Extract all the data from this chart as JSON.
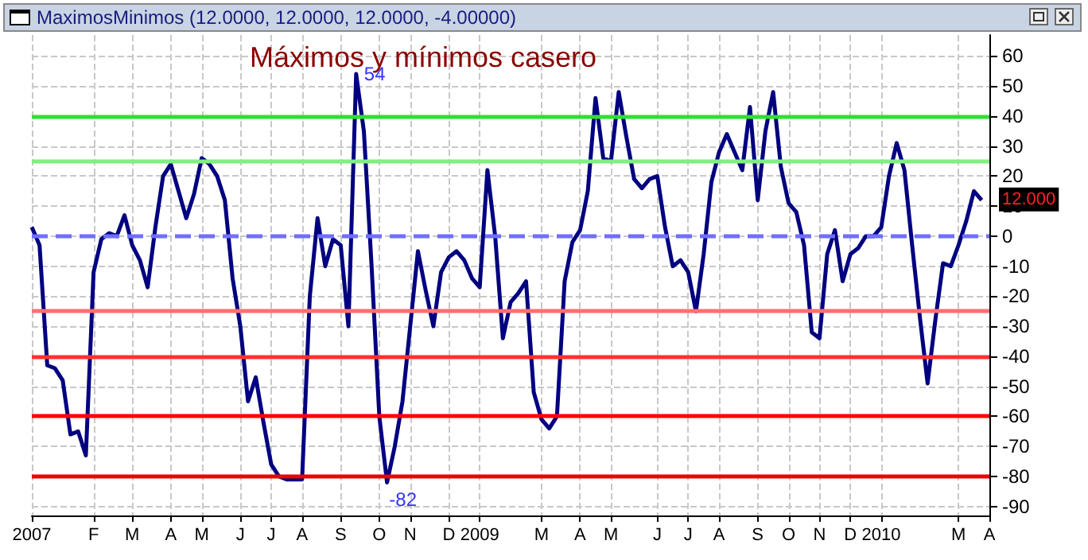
{
  "chart_data": {
    "type": "line",
    "title": "Máximos y mínimos casero",
    "subtitle": "MaximosMinimos (12.0000, 12.0000, 12.0000, -4.00000)",
    "categories": [
      "2007",
      null,
      null,
      null,
      null,
      null,
      null,
      null,
      "F",
      null,
      null,
      null,
      null,
      "M",
      null,
      null,
      null,
      null,
      "A",
      null,
      null,
      null,
      "M",
      null,
      null,
      null,
      null,
      "J",
      null,
      null,
      null,
      "J",
      null,
      null,
      null,
      "A",
      null,
      null,
      null,
      null,
      "S",
      null,
      null,
      null,
      null,
      "O",
      null,
      null,
      null,
      "N",
      null,
      null,
      null,
      null,
      "D",
      null,
      null,
      null,
      "2009",
      null,
      null,
      null,
      null,
      null,
      null,
      null,
      "M",
      null,
      null,
      null,
      null,
      "A",
      null,
      null,
      null,
      "M",
      null,
      null,
      null,
      null,
      null,
      "J",
      null,
      null,
      null,
      "J",
      null,
      null,
      null,
      "A",
      null,
      null,
      null,
      null,
      "S",
      null,
      null,
      null,
      "O",
      null,
      null,
      null,
      "N",
      null,
      null,
      null,
      "D",
      null,
      null,
      null,
      "2010",
      null,
      null,
      null,
      null,
      null,
      null,
      null,
      null,
      null,
      "M",
      null,
      null,
      null,
      "A"
    ],
    "series": [
      {
        "color": "#000080",
        "values": [
          3,
          -3,
          -43,
          -44,
          -48,
          -66,
          -65,
          -73,
          -12,
          -1,
          1,
          0,
          7,
          -3,
          -8,
          -17,
          3,
          20,
          24,
          15,
          6,
          14,
          26,
          24,
          20,
          12,
          -14,
          -30,
          -55,
          -47,
          -62,
          -76,
          -80,
          -81,
          -81,
          -81,
          -20,
          6,
          -10,
          -1,
          -3,
          -30,
          54,
          35,
          -10,
          -60,
          -82,
          -70,
          -55,
          -30,
          -5,
          -18,
          -30,
          -12,
          -7,
          -5,
          -8,
          -14,
          -17,
          22,
          0,
          -34,
          -22,
          -19,
          -15,
          -52,
          -61,
          -64,
          -60,
          -15,
          -2,
          2,
          15,
          46,
          26,
          25,
          48,
          33,
          19,
          16,
          19,
          20,
          3,
          -10,
          -8,
          -12,
          -25,
          -6,
          18,
          28,
          34,
          28,
          22,
          43,
          12,
          35,
          48,
          23,
          11,
          8,
          -3,
          -32,
          -34,
          -6,
          2,
          -15,
          -6,
          -4,
          0,
          0,
          3,
          20,
          31,
          22,
          -3,
          -27,
          -49,
          -28,
          -9,
          -10,
          -3,
          5,
          15,
          12,
          null
        ],
        "value_labels": [
          null,
          null,
          null,
          null,
          null,
          null,
          null,
          null,
          null,
          null,
          null,
          null,
          null,
          null,
          null,
          null,
          null,
          null,
          null,
          null,
          null,
          null,
          null,
          null,
          null,
          null,
          null,
          null,
          null,
          null,
          null,
          null,
          null,
          null,
          null,
          null,
          null,
          null,
          null,
          null,
          null,
          null,
          "54",
          null,
          null,
          null,
          "-82",
          null,
          null,
          null,
          null,
          null,
          null,
          null,
          null,
          null,
          null,
          null,
          null,
          null,
          null,
          null,
          null,
          null,
          null,
          null,
          null,
          null,
          null,
          null,
          null,
          null,
          null,
          null,
          null,
          null,
          null,
          null,
          null,
          null,
          null,
          null,
          null,
          null,
          null,
          null,
          null,
          null,
          null,
          null,
          null,
          null,
          null,
          null,
          null,
          null,
          null,
          null,
          null,
          null,
          null,
          null,
          null,
          null,
          null,
          null,
          null,
          null,
          null,
          null,
          null,
          null,
          null,
          null,
          null,
          null,
          null,
          null,
          null,
          null,
          null,
          null,
          null,
          null,
          null
        ]
      }
    ],
    "ylim": [
      -93,
      67
    ],
    "yticks": [
      -90,
      -80,
      -70,
      -60,
      -50,
      -40,
      -30,
      -20,
      -10,
      0,
      10,
      20,
      30,
      40,
      50,
      60
    ],
    "ref_lines": [
      {
        "axis": "y",
        "value": 40,
        "color": "#33dd33",
        "line_style": "solid"
      },
      {
        "axis": "y",
        "value": 25,
        "color": "#7fef7f",
        "line_style": "solid"
      },
      {
        "axis": "y",
        "value": 0,
        "color": "#6f6fff",
        "line_style": "dashed"
      },
      {
        "axis": "y",
        "value": -25,
        "color": "#ff6f6f",
        "line_style": "solid"
      },
      {
        "axis": "y",
        "value": -40,
        "color": "#ff3030",
        "line_style": "solid"
      },
      {
        "axis": "y",
        "value": -60,
        "color": "#ff0000",
        "line_style": "solid"
      },
      {
        "axis": "y",
        "value": -80,
        "color": "#ee0000",
        "line_style": "solid"
      }
    ],
    "annotations": [
      "12.000"
    ],
    "grid": true,
    "marker": "none",
    "line_style": "solid"
  }
}
